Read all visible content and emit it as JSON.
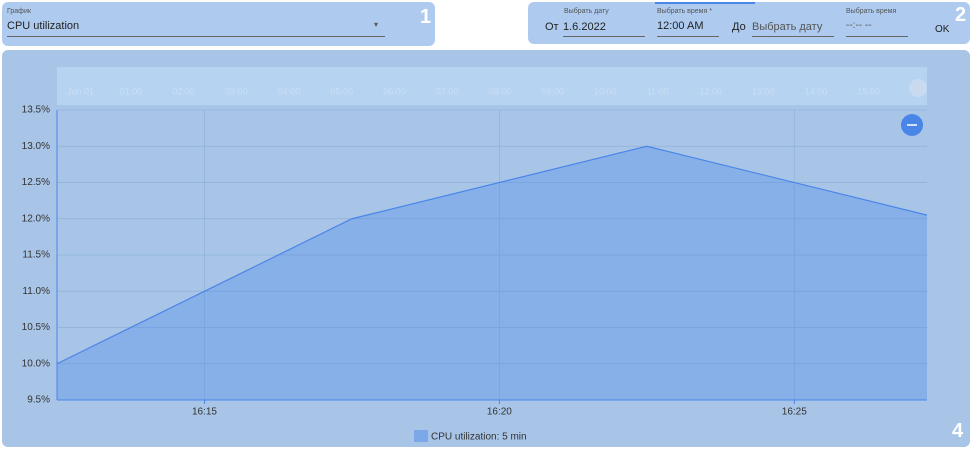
{
  "controls": {
    "chart_label": "График",
    "chart_value": "CPU utilization",
    "from_label": "От",
    "date_label": "Выбрать дату",
    "date_value": "1.6.2022",
    "time_label": "Выбрать время *",
    "time_value": "12:00 AM",
    "to_label": "До",
    "to_date_placeholder": "Выбрать дату",
    "to_time_label": "Выбрать время",
    "to_time_value": "--:-- --",
    "ok": "OK"
  },
  "badges": [
    "1",
    "2",
    "4"
  ],
  "navigator": [
    "Jun 01",
    "01:00",
    "02:00",
    "03:00",
    "04:00",
    "05:00",
    "06:00",
    "07:00",
    "08:00",
    "09:00",
    "10:00",
    "11:00",
    "12:00",
    "13:00",
    "14:00",
    "15:00"
  ],
  "chart_data": {
    "type": "area",
    "x": [
      "16:12:30",
      "16:17:30",
      "16:22:30",
      "16:27:15"
    ],
    "series": [
      {
        "name": "CPU utilization: 5 min",
        "color": "#4a86e8",
        "values": [
          10.0,
          12.0,
          13.0,
          12.05
        ]
      }
    ],
    "xlim": [
      "16:12:30",
      "16:27:15"
    ],
    "xticks": [
      "16:15",
      "16:20",
      "16:25"
    ],
    "ylim": [
      9.5,
      13.5
    ],
    "yticks": [
      {
        "value": 9.5,
        "label": "9.5%"
      },
      {
        "value": 10.0,
        "label": "10.0%"
      },
      {
        "value": 10.5,
        "label": "10.5%"
      },
      {
        "value": 11.0,
        "label": "11.0%"
      },
      {
        "value": 11.5,
        "label": "11.5%"
      },
      {
        "value": 12.0,
        "label": "12.0%"
      },
      {
        "value": 12.5,
        "label": "12.5%"
      },
      {
        "value": 13.0,
        "label": "13.0%"
      },
      {
        "value": 13.5,
        "label": "13.5%"
      }
    ],
    "grid": true
  }
}
